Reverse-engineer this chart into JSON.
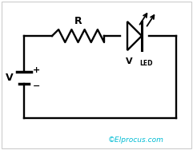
{
  "bg_color": "#ffffff",
  "wire_color": "#000000",
  "text_color": "#000000",
  "copyright_color": "#00bcd4",
  "copyright_text": "©Elprocus.com",
  "label_V": "V",
  "label_R": "R",
  "label_VLED": "V",
  "label_LED_sub": "LED",
  "plus_sign": "+",
  "minus_sign": "−"
}
